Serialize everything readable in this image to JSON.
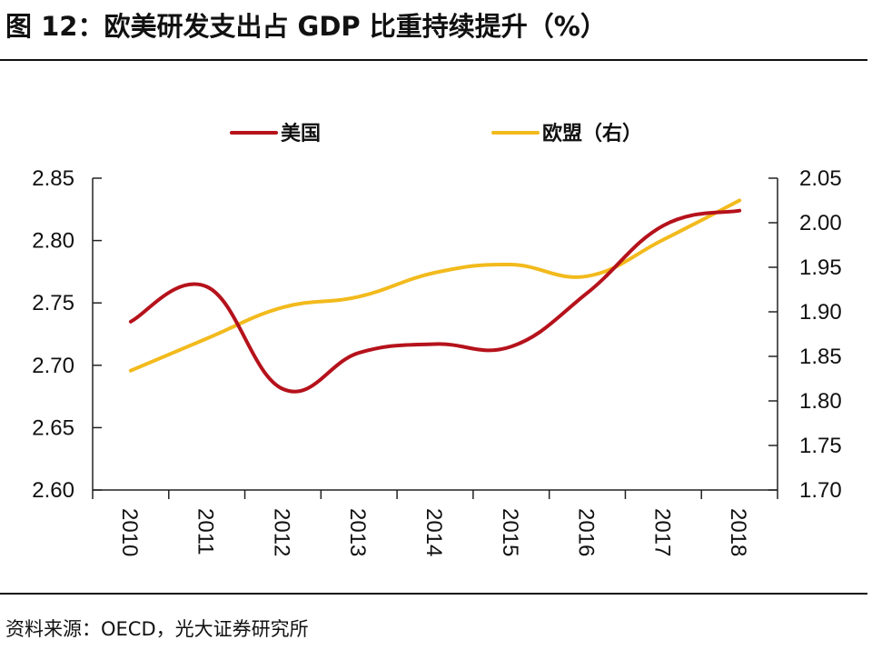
{
  "header": {
    "title": "图 12：欧美研发支出占 GDP 比重持续提升（%）"
  },
  "footer": {
    "source": "资料来源：OECD，光大证券研究所"
  },
  "chart_data": {
    "type": "line",
    "title": "图 12：欧美研发支出占 GDP 比重持续提升（%）",
    "xlabel": "",
    "ylabel": "",
    "x": [
      "2010",
      "2011",
      "2012",
      "2013",
      "2014",
      "2015",
      "2016",
      "2017",
      "2018"
    ],
    "y_left": {
      "ylim": [
        2.6,
        2.85
      ],
      "ticks": [
        "2.60",
        "2.65",
        "2.70",
        "2.75",
        "2.80",
        "2.85"
      ]
    },
    "y_right": {
      "ylim": [
        1.7,
        2.05
      ],
      "ticks": [
        "1.70",
        "1.75",
        "1.80",
        "1.85",
        "1.90",
        "1.95",
        "2.00",
        "2.05"
      ]
    },
    "legend_position": "top-center",
    "grid": false,
    "series": [
      {
        "name": "美国",
        "axis": "left",
        "color": "#B5121B",
        "values": [
          2.735,
          2.763,
          2.681,
          2.71,
          2.717,
          2.715,
          2.758,
          2.812,
          2.824
        ]
      },
      {
        "name": "欧盟（右）",
        "axis": "right",
        "color": "#F2BA1C",
        "values": [
          1.834,
          1.87,
          1.905,
          1.917,
          1.944,
          1.953,
          1.94,
          1.981,
          2.025
        ]
      }
    ],
    "source": "资料来源：OECD，光大证券研究所"
  }
}
